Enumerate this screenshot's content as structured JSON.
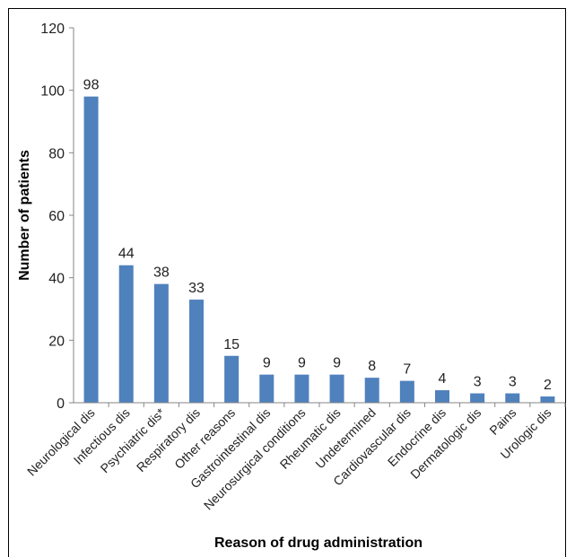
{
  "chart_data": {
    "type": "bar",
    "title": "",
    "xlabel": "Reason of drug administration",
    "ylabel": "Number of patients",
    "ylim": [
      0,
      120
    ],
    "yticks": [
      0,
      20,
      40,
      60,
      80,
      100,
      120
    ],
    "grid": false,
    "legend": "none",
    "bar_color": "#4F81BD",
    "categories": [
      "Neurological dis",
      "Infectious dis",
      "Psychiatric dis*",
      "Respiratory dis",
      "Other reasons",
      "Gastrointestinal dis",
      "Neurosurgical conditions",
      "Rheumatic dis",
      "Undetermined",
      "Cardiovascular dis",
      "Endocrine dis",
      "Dermatologic dis",
      "Pains",
      "Urologic dis"
    ],
    "values": [
      98,
      44,
      38,
      33,
      15,
      9,
      9,
      9,
      8,
      7,
      4,
      3,
      3,
      2
    ]
  }
}
